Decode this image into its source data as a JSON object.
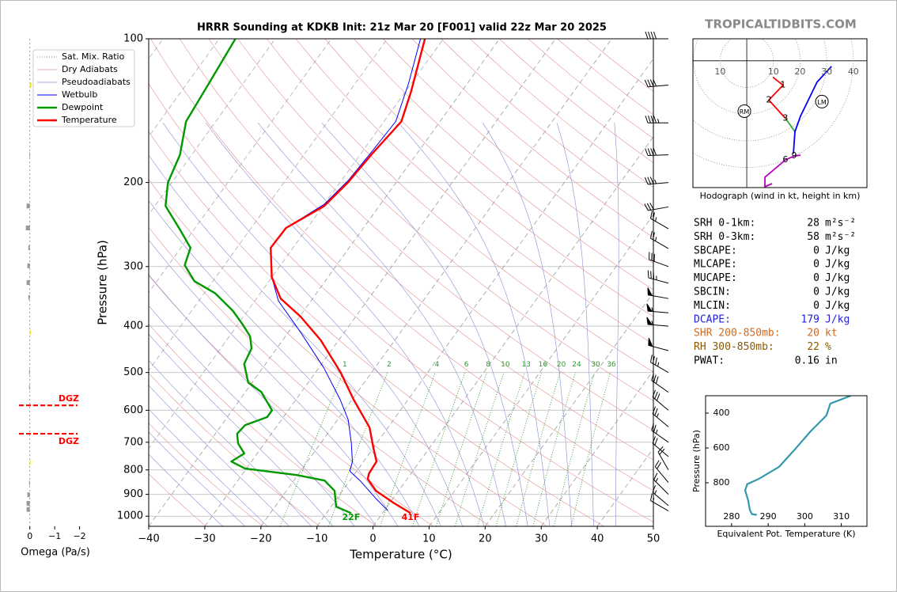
{
  "header": {
    "brand": "TROPICALTIDBITS.COM"
  },
  "chart_data": [
    {
      "type": "skewt",
      "title": "HRRR Sounding at KDKB Init: 21z Mar 20 [F001] valid 22z Mar 20 2025",
      "xlabel": "Temperature (°C)",
      "ylabel": "Pressure (hPa)",
      "xlim": [
        -40,
        50
      ],
      "ylim": [
        1050,
        100
      ],
      "log_y": true,
      "xticks": [
        {
          "value": -40,
          "label": "−40"
        },
        {
          "value": -30,
          "label": "−30"
        },
        {
          "value": -20,
          "label": "−20"
        },
        {
          "value": -10,
          "label": "−10"
        },
        0,
        10,
        20,
        30,
        40,
        50
      ],
      "yticks": [
        100,
        200,
        300,
        400,
        500,
        600,
        700,
        800,
        900,
        1000
      ],
      "grid": true,
      "legend": "upper left",
      "reference_lines": [
        {
          "name": "Sat. Mix. Ratio",
          "color": "#2e9a2e",
          "style": "dotted",
          "labels": [
            1,
            2,
            4,
            6,
            8,
            10,
            13,
            16,
            20,
            24,
            30,
            36
          ]
        },
        {
          "name": "Dry Adiabats",
          "color": "#e39090",
          "style": "solid"
        },
        {
          "name": "Pseudoadiabats",
          "color": "#8c8cd6",
          "style": "solid"
        }
      ],
      "series": [
        {
          "name": "Wetbulb",
          "color": "#0000ff",
          "pressure": [
            973,
            919,
            842,
            805,
            768,
            704,
            628,
            570,
            490,
            412,
            354,
            316,
            274,
            249,
            222,
            198,
            173,
            149,
            124,
            100
          ],
          "values": [
            0.6,
            -3.0,
            -8.2,
            -11.2,
            -12.0,
            -14.5,
            -18.1,
            -22.1,
            -29.0,
            -37.8,
            -45.8,
            -50.0,
            -54.0,
            -53.8,
            -50.0,
            -48.8,
            -48.3,
            -47.9,
            -50.5,
            -54.1
          ]
        },
        {
          "name": "Dewpoint",
          "color": "#009900",
          "surface_label": "22F",
          "pressure": [
            985,
            955,
            885,
            842,
            820,
            795,
            768,
            739,
            704,
            672,
            645,
            620,
            600,
            549,
            525,
            480,
            445,
            420,
            397,
            371,
            341,
            322,
            298,
            274,
            251,
            224,
            200,
            175,
            149,
            124,
            100
          ],
          "values": [
            -5.6,
            -9.1,
            -11.4,
            -14.5,
            -20.2,
            -30.2,
            -33.6,
            -32.3,
            -34.7,
            -36.1,
            -35.8,
            -32.9,
            -32.9,
            -37.2,
            -40.7,
            -43.8,
            -44.5,
            -46.3,
            -49.1,
            -52.7,
            -58.1,
            -63.3,
            -67.1,
            -68.3,
            -72.5,
            -78.1,
            -80.7,
            -82.1,
            -85.3,
            -86.1,
            -87.1
          ]
        },
        {
          "name": "Temperature",
          "color": "#ff0000",
          "surface_label": "41F",
          "pressure": [
            985,
            937,
            885,
            836,
            814,
            768,
            717,
            652,
            570,
            499,
            428,
            382,
            350,
            316,
            274,
            249,
            224,
            200,
            175,
            149,
            129,
            100
          ],
          "values": [
            5.0,
            0.6,
            -4.0,
            -7.0,
            -7.5,
            -7.7,
            -10.1,
            -13.3,
            -19.7,
            -25.6,
            -33.2,
            -39.8,
            -45.7,
            -50.0,
            -54.0,
            -53.8,
            -49.8,
            -48.6,
            -48.0,
            -46.9,
            -49.0,
            -53.3
          ]
        }
      ],
      "winds": {
        "pressure": [
          100,
          125,
          150,
          175,
          200,
          225,
          250,
          275,
          300,
          325,
          350,
          375,
          400,
          450,
          500,
          550,
          600,
          650,
          700,
          750,
          800,
          850,
          900,
          950,
          975
        ],
        "speed": [
          40,
          40,
          45,
          40,
          35,
          30,
          25,
          25,
          30,
          35,
          50,
          55,
          55,
          50,
          35,
          30,
          30,
          25,
          25,
          20,
          20,
          20,
          15,
          15,
          15
        ],
        "direction": [
          270,
          265,
          270,
          268,
          265,
          260,
          300,
          300,
          290,
          285,
          280,
          275,
          275,
          285,
          300,
          305,
          310,
          310,
          305,
          310,
          330,
          320,
          315,
          310,
          300
        ]
      },
      "dgz": [
        {
          "label": "DGZ",
          "pressure": 586
        },
        {
          "label": "DGZ",
          "pressure": 672
        }
      ]
    },
    {
      "type": "omega",
      "xlabel": "Omega (Pa/s)",
      "xlim": [
        0.5,
        -2.3
      ],
      "xticks": [
        0,
        {
          "value": -1,
          "label": "−1"
        },
        {
          "value": -2,
          "label": "−2"
        }
      ],
      "pressure": [
        125,
        175,
        224,
        249,
        274,
        299,
        324,
        348,
        412,
        499,
        537,
        772,
        852,
        902,
        940,
        968
      ],
      "values": [
        -0.06,
        0.02,
        0.13,
        0.16,
        0.06,
        0.1,
        0.13,
        0.06,
        -0.02,
        0.03,
        0.03,
        -0.02,
        0.03,
        0.1,
        0.13,
        0.13
      ],
      "colors": [
        "#e6e600",
        "#999999",
        "#999999",
        "#999999",
        "#999999",
        "#999999",
        "#999999",
        "#999999",
        "#e6e600",
        "#999999",
        "#999999",
        "#e6e600",
        "#999999",
        "#999999",
        "#999999",
        "#999999"
      ]
    },
    {
      "type": "hodograph",
      "caption": "Hodograph (wind in kt, height in km)",
      "xlim": [
        -20.2,
        45.1
      ],
      "ylim": [
        -47.8,
        8.3
      ],
      "xticks": [
        {
          "value": -10,
          "label": "10"
        },
        10,
        20,
        30,
        40
      ],
      "series": [
        {
          "color": "#ff0000",
          "u": [
            9.8,
            13.6,
            8.3,
            14.5
          ],
          "v": [
            -6.2,
            -9.2,
            -14.8,
            -21.7
          ],
          "labels": [
            null,
            "1",
            "2",
            "3"
          ]
        },
        {
          "color": "#33aa33",
          "u": [
            14.5,
            18.1
          ],
          "v": [
            -21.7,
            -26.7
          ],
          "labels": [
            null,
            null
          ]
        },
        {
          "color": "#0000ff",
          "u": [
            17.5,
            18.1,
            20.2,
            26.4,
            31.8
          ],
          "v": [
            -35.0,
            -26.7,
            -20.8,
            -8.0,
            -2.1
          ],
          "labels": [
            null,
            null,
            null,
            null,
            null
          ]
        },
        {
          "color": "#bb00bb",
          "u": [
            20.2,
            17.8,
            14.5,
            6.8,
            6.8,
            9.5
          ],
          "v": [
            -35.6,
            -35.9,
            -37.4,
            -43.9,
            -47.5,
            -46.3
          ],
          "labels": [
            null,
            "9",
            "6",
            null,
            null,
            null
          ]
        }
      ],
      "markers": [
        {
          "label": "RM",
          "u": -0.9,
          "v": -19.0
        },
        {
          "label": "LM",
          "u": 28.2,
          "v": -15.4
        }
      ]
    },
    {
      "type": "profile",
      "xlabel": "Equivalent Pot. Temperature (K)",
      "ylabel": "Pressure (hPa)",
      "xlim": [
        272.9,
        317.0
      ],
      "ylim": [
        1050,
        300
      ],
      "xticks": [
        280,
        290,
        300,
        310
      ],
      "yticks": [
        400,
        600,
        800
      ],
      "color": "#3399aa",
      "pressure": [
        300,
        345.6,
        413.6,
        504,
        608,
        708,
        776,
        807.6,
        843.8,
        898,
        957,
        980,
        984
      ],
      "values": [
        312.6,
        307.0,
        305.9,
        301.6,
        297.3,
        293.0,
        287.6,
        284.3,
        283.7,
        284.5,
        285.0,
        285.6,
        286.9
      ]
    }
  ],
  "stats": {
    "rows": [
      {
        "label": "SRH 0-1km:",
        "value": 28,
        "unit": "m²s⁻²",
        "color": "#000000"
      },
      {
        "label": "SRH 0-3km:",
        "value": 58,
        "unit": "m²s⁻²",
        "color": "#000000"
      },
      {
        "label": "SBCAPE:",
        "value": 0,
        "unit": "J/kg",
        "color": "#000000"
      },
      {
        "label": "MLCAPE:",
        "value": 0,
        "unit": "J/kg",
        "color": "#000000"
      },
      {
        "label": "MUCAPE:",
        "value": 0,
        "unit": "J/kg",
        "color": "#000000"
      },
      {
        "label": "SBCIN:",
        "value": 0,
        "unit": "J/kg",
        "color": "#000000"
      },
      {
        "label": "MLCIN:",
        "value": 0,
        "unit": "J/kg",
        "color": "#000000"
      },
      {
        "label": "DCAPE:",
        "value": 179,
        "unit": "J/kg",
        "color": "#2222dd"
      },
      {
        "label": "SHR 200-850mb:",
        "value": 20,
        "unit": "kt",
        "color": "#d2691e"
      },
      {
        "label": "RH 300-850mb:",
        "value": 22,
        "unit": "%",
        "color": "#8b5a00"
      },
      {
        "label": "PWAT:",
        "value": 0.16,
        "unit": "in",
        "color": "#000000"
      }
    ]
  }
}
